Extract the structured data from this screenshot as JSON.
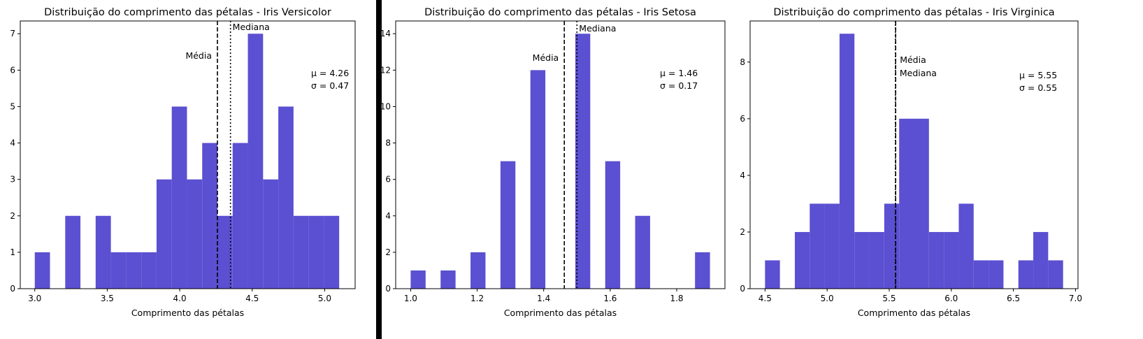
{
  "figure": {
    "bar_color": "#5b50d1",
    "separator_color": "#000000"
  },
  "chart_data": [
    {
      "type": "bar",
      "title": "Distribuição do comprimento das pétalas - Iris Versicolor",
      "xlabel": "Comprimento das pétalas",
      "ylabel": "",
      "xlim": [
        2.9,
        5.21
      ],
      "ylim": [
        0,
        7.35
      ],
      "xticks": [
        3.0,
        3.5,
        4.0,
        4.5,
        5.0
      ],
      "xtick_labels": [
        "3.0",
        "3.5",
        "4.0",
        "4.5",
        "5.0"
      ],
      "yticks": [
        0,
        1,
        2,
        3,
        4,
        5,
        6,
        7
      ],
      "bin_edges": [
        3.0,
        3.105,
        3.21,
        3.315,
        3.42,
        3.525,
        3.63,
        3.735,
        3.84,
        3.945,
        4.05,
        4.155,
        4.26,
        4.365,
        4.47,
        4.575,
        4.68,
        4.785,
        4.89,
        4.995,
        5.1
      ],
      "counts": [
        1,
        0,
        2,
        0,
        2,
        1,
        1,
        1,
        3,
        5,
        3,
        4,
        2,
        4,
        7,
        3,
        5,
        2,
        2,
        2
      ],
      "mean": 4.26,
      "median": 4.35,
      "mean_label": "Média",
      "median_label": "Mediana",
      "stats_text": [
        "μ = 4.26",
        "σ = 0.47"
      ]
    },
    {
      "type": "bar",
      "title": "Distribuição do comprimento das pétalas - Iris Setosa",
      "xlabel": "Comprimento das pétalas",
      "ylabel": "",
      "xlim": [
        0.955,
        1.945
      ],
      "ylim": [
        0,
        14.7
      ],
      "xticks": [
        1.0,
        1.2,
        1.4,
        1.6,
        1.8
      ],
      "xtick_labels": [
        "1.0",
        "1.2",
        "1.4",
        "1.6",
        "1.8"
      ],
      "yticks": [
        0,
        2,
        4,
        6,
        8,
        10,
        12,
        14
      ],
      "bin_edges": [
        1.0,
        1.045,
        1.09,
        1.135,
        1.18,
        1.225,
        1.27,
        1.315,
        1.36,
        1.405,
        1.45,
        1.495,
        1.54,
        1.585,
        1.63,
        1.675,
        1.72,
        1.765,
        1.81,
        1.855,
        1.9
      ],
      "counts": [
        1,
        0,
        1,
        0,
        2,
        0,
        7,
        0,
        12,
        0,
        0,
        14,
        0,
        7,
        0,
        4,
        0,
        0,
        0,
        2
      ],
      "mean": 1.462,
      "median": 1.5,
      "mean_label": "Média",
      "median_label": "Mediana",
      "stats_text": [
        "μ = 1.46",
        "σ = 0.17"
      ]
    },
    {
      "type": "bar",
      "title": "Distribuição do comprimento das pétalas - Iris Virginica",
      "xlabel": "Comprimento das pétalas",
      "ylabel": "",
      "xlim": [
        4.38,
        7.02
      ],
      "ylim": [
        0,
        9.45
      ],
      "xticks": [
        4.5,
        5.0,
        5.5,
        6.0,
        6.5,
        7.0
      ],
      "xtick_labels": [
        "4.5",
        "5.0",
        "5.5",
        "6.0",
        "6.5",
        "7.0"
      ],
      "yticks": [
        0,
        2,
        4,
        6,
        8
      ],
      "bin_edges": [
        4.5,
        4.62,
        4.74,
        4.86,
        4.98,
        5.1,
        5.22,
        5.34,
        5.46,
        5.58,
        5.7,
        5.82,
        5.94,
        6.06,
        6.18,
        6.3,
        6.42,
        6.54,
        6.66,
        6.78,
        6.9
      ],
      "counts": [
        1,
        0,
        2,
        3,
        3,
        9,
        2,
        2,
        3,
        6,
        6,
        2,
        2,
        3,
        1,
        1,
        0,
        1,
        2,
        1
      ],
      "mean": 5.552,
      "median": 5.55,
      "mean_label": "Média",
      "median_label": "Mediana",
      "stats_text": [
        "μ = 5.55",
        "σ = 0.55"
      ]
    }
  ]
}
